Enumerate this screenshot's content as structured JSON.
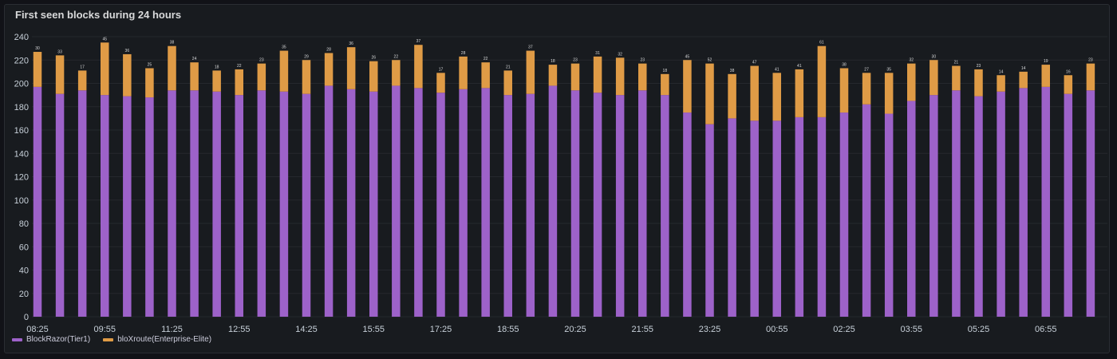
{
  "panel": {
    "title": "First seen blocks during 24 hours"
  },
  "chart_data": {
    "type": "bar",
    "stacked": true,
    "title": "First seen blocks during 24 hours",
    "ylim": [
      0,
      240
    ],
    "yticks": [
      0,
      20,
      40,
      60,
      80,
      100,
      120,
      140,
      160,
      180,
      200,
      220,
      240
    ],
    "grid": true,
    "legend_position": "bottom-left",
    "x_tick_labels": [
      "08:25",
      "09:55",
      "11:25",
      "12:55",
      "14:25",
      "15:55",
      "17:25",
      "18:55",
      "20:25",
      "21:55",
      "23:25",
      "00:55",
      "02:25",
      "03:55",
      "05:25",
      "06:55"
    ],
    "colors": {
      "BlockRazor(Tier1)": "#9d62c9",
      "bloXroute(Enterprise-Elite)": "#df9b46"
    },
    "series": [
      {
        "name": "BlockRazor(Tier1)",
        "values": [
          197,
          191,
          194,
          190,
          189,
          188,
          194,
          194,
          193,
          190,
          194,
          193,
          191,
          198,
          195,
          193,
          198,
          196,
          192,
          195,
          196,
          190,
          191,
          198,
          194,
          192,
          190,
          194,
          190,
          175,
          165,
          170,
          168,
          168,
          171,
          171,
          175,
          182,
          174,
          185,
          190,
          194,
          189,
          193,
          196,
          197,
          191,
          194
        ]
      },
      {
        "name": "bloXroute(Enterprise-Elite)",
        "values": [
          30,
          33,
          17,
          45,
          36,
          25,
          38,
          24,
          18,
          22,
          23,
          35,
          29,
          28,
          36,
          26,
          22,
          37,
          17,
          28,
          22,
          21,
          37,
          18,
          23,
          31,
          32,
          23,
          18,
          45,
          52,
          38,
          47,
          41,
          41,
          61,
          38,
          27,
          35,
          32,
          30,
          21,
          23,
          14,
          14,
          19,
          16,
          23
        ]
      }
    ],
    "data_labels_top": [
      "30",
      "33",
      "17",
      "45",
      "36",
      "25",
      "38",
      "24",
      "18",
      "22",
      "23",
      "35",
      "29",
      "28",
      "36",
      "26",
      "22",
      "37",
      "17",
      "28",
      "22",
      "21",
      "37",
      "18",
      "23",
      "31",
      "32",
      "23",
      "18",
      "45",
      "52",
      "38",
      "47",
      "41",
      "41",
      "61",
      "38",
      "27",
      "35",
      "32",
      "30",
      "21",
      "23",
      "14",
      "14",
      "19",
      "16",
      "23"
    ]
  },
  "legend": {
    "items": [
      {
        "label": "BlockRazor(Tier1)",
        "color": "#9d62c9"
      },
      {
        "label": "bloXroute(Enterprise-Elite)",
        "color": "#df9b46"
      }
    ]
  }
}
